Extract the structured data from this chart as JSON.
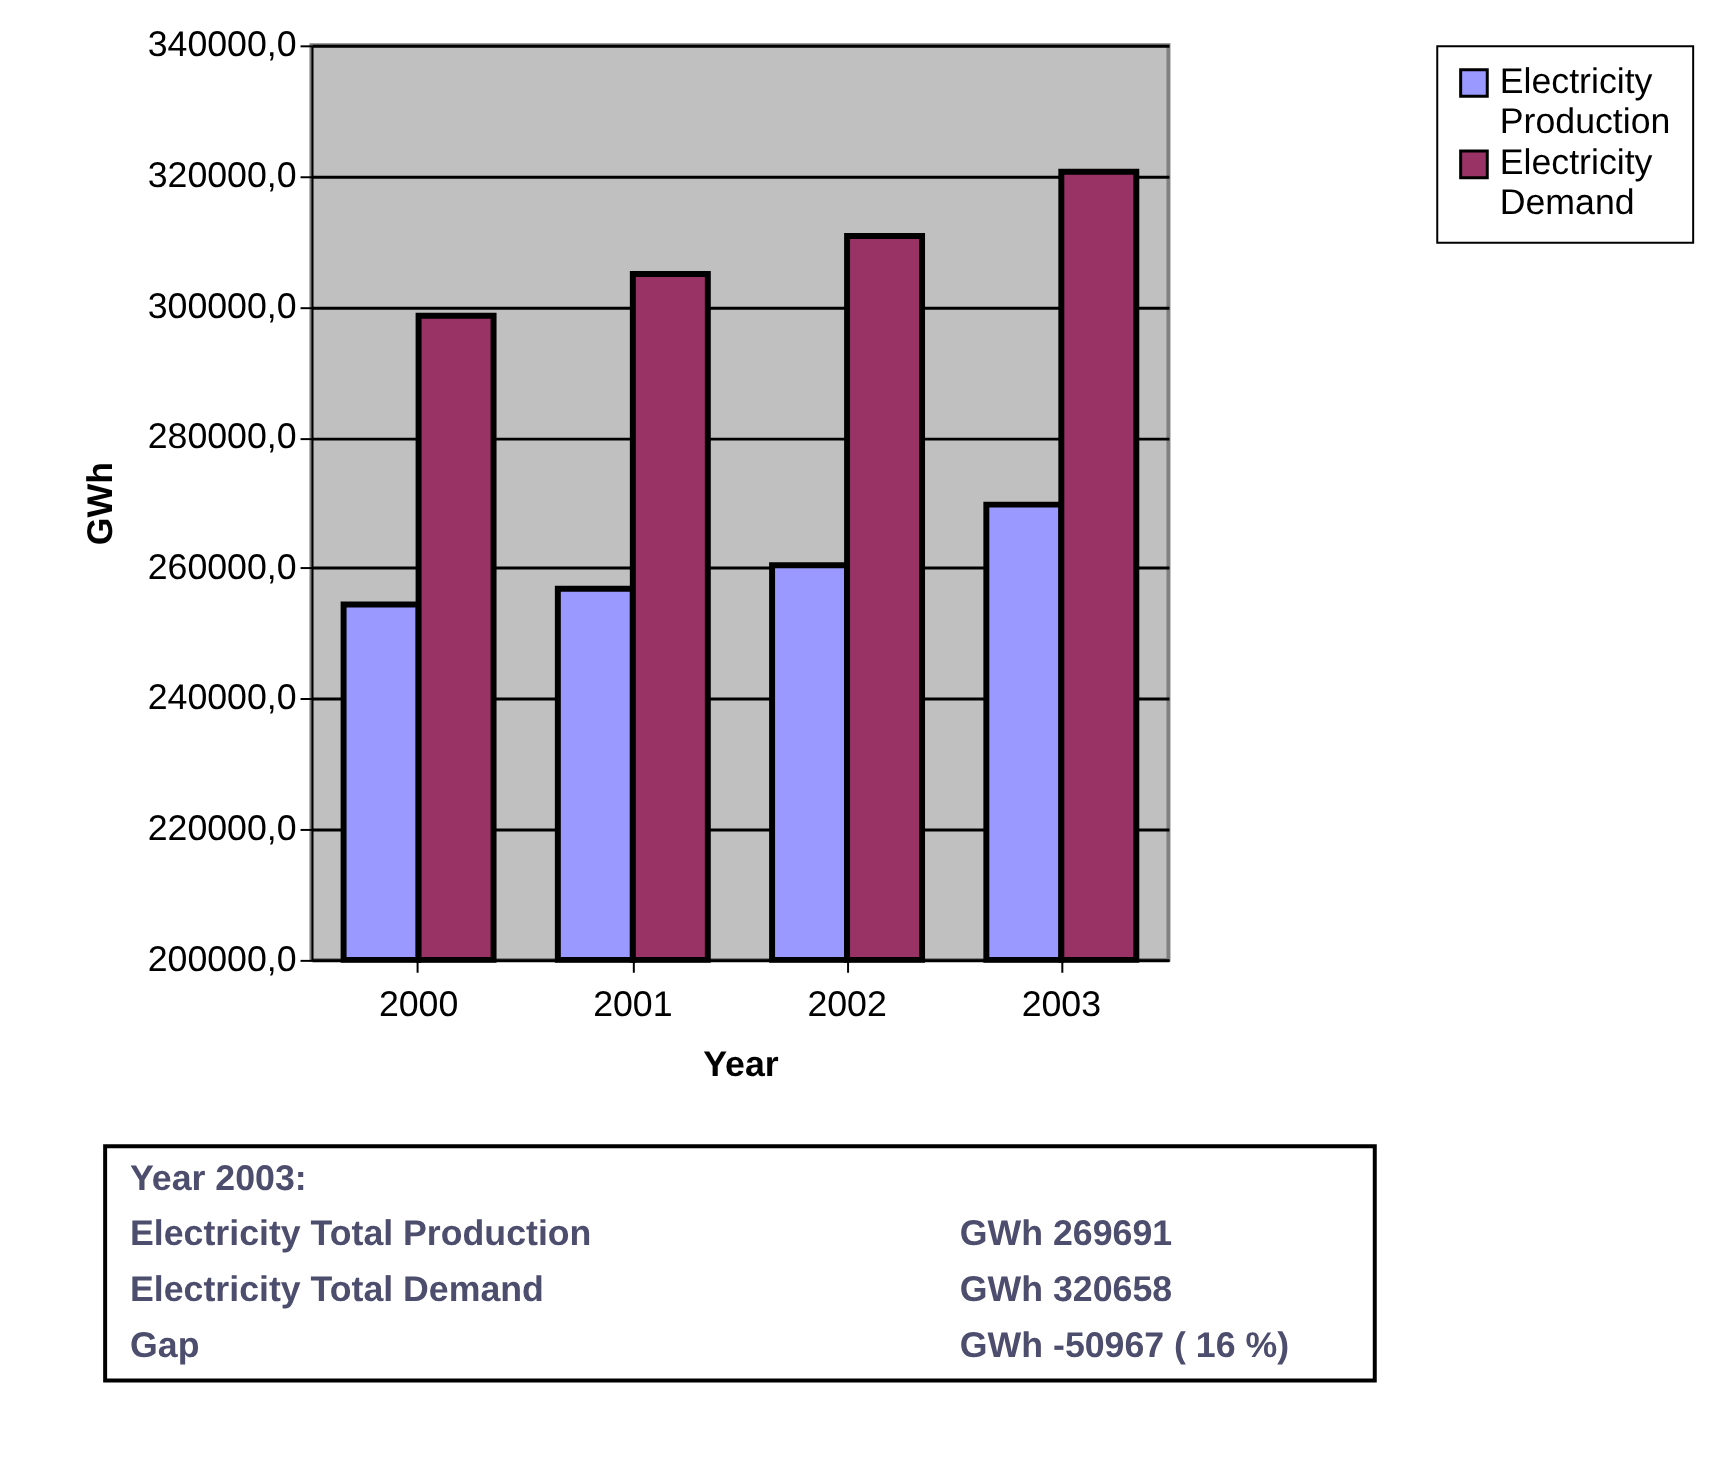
{
  "chart_data": {
    "type": "bar",
    "xlabel": "Year",
    "ylabel": "GWh",
    "categories": [
      "2000",
      "2001",
      "2002",
      "2003"
    ],
    "series": [
      {
        "name": "Electricity Production",
        "color": "#9999ff",
        "values": [
          254400,
          256800,
          260400,
          269691
        ]
      },
      {
        "name": "Electricity Demand",
        "color": "#993366",
        "values": [
          298600,
          305000,
          310800,
          320658
        ]
      }
    ],
    "ylim": [
      200000,
      340000
    ],
    "yticks": [
      {
        "value": 200000,
        "label": "200000,0"
      },
      {
        "value": 220000,
        "label": "220000,0"
      },
      {
        "value": 240000,
        "label": "240000,0"
      },
      {
        "value": 260000,
        "label": "260000,0"
      },
      {
        "value": 280000,
        "label": "280000,0"
      },
      {
        "value": 300000,
        "label": "300000,0"
      },
      {
        "value": 320000,
        "label": "320000,0"
      },
      {
        "value": 340000,
        "label": "340000,0"
      }
    ],
    "grid": "y",
    "legend": "right",
    "annotations": [
      "Year 2003:",
      "Electricity Total Production",
      "GWh 269691",
      "Electricity Total Demand",
      "GWh 320658",
      "Gap",
      "GWh -50967 ( 16 %)"
    ]
  }
}
